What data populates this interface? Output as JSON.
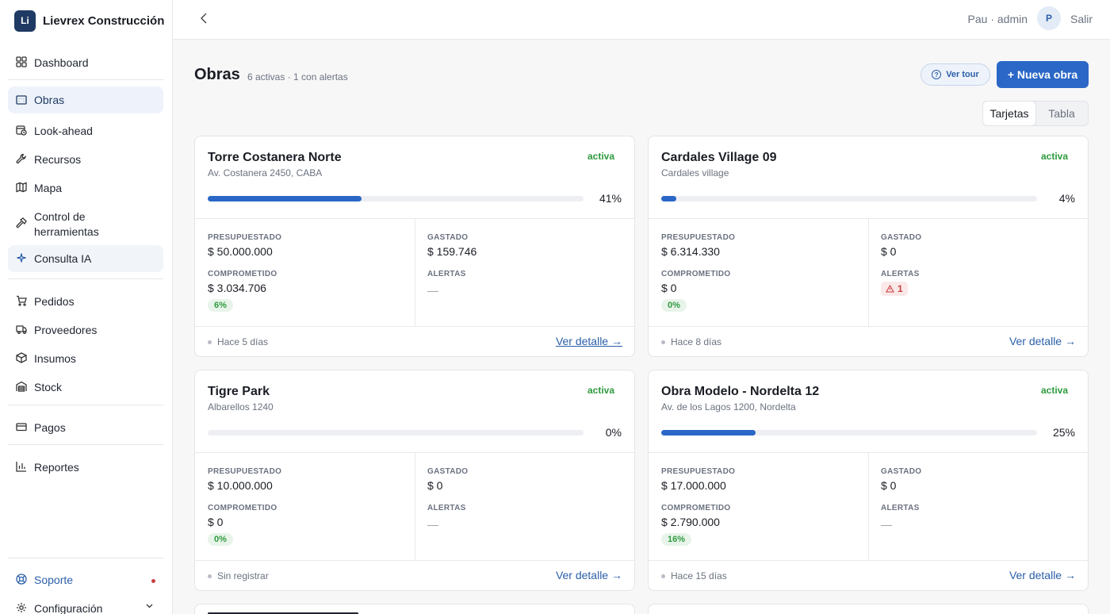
{
  "brand": {
    "logo_text": "Li",
    "name": "Lievrex Construcción"
  },
  "sidebar": {
    "items": [
      {
        "label": "Dashboard",
        "icon": "dashboard-icon"
      },
      {
        "label": "Obras",
        "icon": "building-icon"
      },
      {
        "label": "Look-ahead",
        "icon": "calendar-clock-icon"
      },
      {
        "label": "Recursos",
        "icon": "wrench-icon"
      },
      {
        "label": "Mapa",
        "icon": "map-icon"
      },
      {
        "label": "Control de herramientas",
        "icon": "hammer-icon"
      },
      {
        "label": "Consulta IA",
        "icon": "sparkle-icon"
      },
      {
        "label": "Pedidos",
        "icon": "cart-icon"
      },
      {
        "label": "Proveedores",
        "icon": "truck-icon"
      },
      {
        "label": "Insumos",
        "icon": "box-icon"
      },
      {
        "label": "Stock",
        "icon": "warehouse-icon"
      },
      {
        "label": "Pagos",
        "icon": "credit-card-icon"
      },
      {
        "label": "Reportes",
        "icon": "bar-chart-icon"
      }
    ],
    "soporte": "Soporte",
    "configuracion": "Configuración"
  },
  "topbar": {
    "user": "Pau · admin",
    "avatar": "P",
    "logout": "Salir"
  },
  "page": {
    "title": "Obras",
    "subtitle": "6 activas · 1 con alertas",
    "tour_label": "Ver tour",
    "new_label": "+ Nueva obra",
    "view_cards": "Tarjetas",
    "view_table": "Tabla"
  },
  "labels": {
    "presupuestado": "PRESUPUESTADO",
    "gastado": "GASTADO",
    "comprometido": "COMPROMETIDO",
    "alertas": "ALERTAS",
    "ver_detalle": "Ver detalle →"
  },
  "cards": [
    {
      "name": "Torre Costanera Norte",
      "address": "Av. Costanera 2450, CABA",
      "status": "activa",
      "progress": 41,
      "progress_label": "41%",
      "presupuestado": "$ 50.000.000",
      "gastado": "$ 159.746",
      "comprometido": "$ 3.034.706",
      "comprometido_pct": "6%",
      "alertas": "—",
      "when": "Hace 5 días"
    },
    {
      "name": "Cardales Village 09",
      "address": "Cardales village",
      "status": "activa",
      "progress": 4,
      "progress_label": "4%",
      "presupuestado": "$ 6.314.330",
      "gastado": "$ 0",
      "comprometido": "$ 0",
      "comprometido_pct": "0%",
      "alertas": "1",
      "when": "Hace 8 días"
    },
    {
      "name": "Tigre Park",
      "address": "Albarellos 1240",
      "status": "activa",
      "progress": 0,
      "progress_label": "0%",
      "presupuestado": "$ 10.000.000",
      "gastado": "$ 0",
      "comprometido": "$ 0",
      "comprometido_pct": "0%",
      "alertas": "—",
      "when": "Sin registrar"
    },
    {
      "name": "Obra Modelo - Nordelta 12",
      "address": "Av. de los Lagos 1200, Nordelta",
      "status": "activa",
      "progress": 25,
      "progress_label": "25%",
      "presupuestado": "$ 17.000.000",
      "gastado": "$ 0",
      "comprometido": "$ 2.790.000",
      "comprometido_pct": "16%",
      "alertas": "—",
      "when": "Hace 15 días"
    }
  ],
  "colors": {
    "accent": "#2b67c6",
    "status_green": "#2e9a3e",
    "alert_red": "#c84141"
  }
}
